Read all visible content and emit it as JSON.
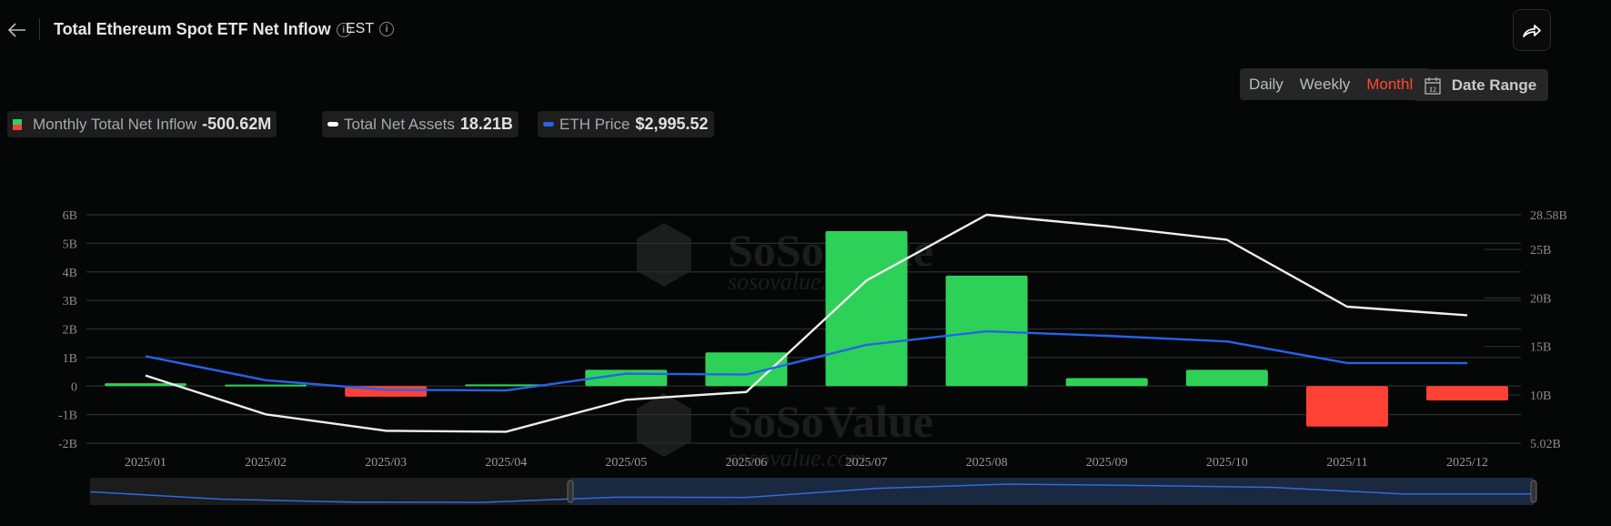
{
  "header": {
    "title": "Total Ethereum Spot ETF Net Inflow",
    "timezone": "EST",
    "back_icon": "arrow-left-icon",
    "share_icon": "share-icon"
  },
  "controls": {
    "periods": [
      "Daily",
      "Weekly",
      "Monthly"
    ],
    "active_period": "Monthly",
    "date_range_label": "Date Range",
    "date_range_icon_text": "12"
  },
  "legend": [
    {
      "label": "Monthly Total Net Inflow",
      "value": "-500.62M",
      "colors": [
        "#2ed158",
        "#ff4136"
      ]
    },
    {
      "label": "Total Net Assets",
      "value": "18.21B",
      "color": "#ffffff"
    },
    {
      "label": "ETH Price",
      "value": "$2,995.52",
      "color": "#2563eb"
    }
  ],
  "watermark": {
    "brand": "SoSoValue",
    "url": "sosovalue.com"
  },
  "chart_data": {
    "type": "bar+line",
    "categories": [
      "2025/01",
      "2025/02",
      "2025/03",
      "2025/04",
      "2025/05",
      "2025/06",
      "2025/07",
      "2025/08",
      "2025/09",
      "2025/10",
      "2025/11",
      "2025/12"
    ],
    "left_axis": {
      "ticks": [
        "6B",
        "5B",
        "4B",
        "3B",
        "2B",
        "1B",
        "0",
        "-1B",
        "-2B"
      ],
      "range": [
        -2,
        6
      ],
      "unit": "B USD"
    },
    "right_axis": {
      "ticks": [
        "28.58B",
        "25B",
        "20B",
        "15B",
        "10B",
        "5.02B"
      ],
      "range": [
        5.02,
        28.58
      ],
      "unit": "B USD"
    },
    "series": [
      {
        "name": "Monthly Total Net Inflow",
        "type": "bar",
        "axis": "left",
        "values": [
          0.1,
          0.05,
          -0.37,
          0.06,
          0.57,
          1.18,
          5.43,
          3.87,
          0.28,
          0.57,
          -1.42,
          -0.5
        ],
        "positive_color": "#2ed158",
        "negative_color": "#ff4136"
      },
      {
        "name": "Total Net Assets",
        "type": "line",
        "axis": "right",
        "values": [
          12.0,
          8.0,
          6.3,
          6.2,
          9.5,
          10.3,
          21.8,
          28.58,
          27.4,
          26.0,
          19.1,
          18.21
        ],
        "color": "#eeeeee"
      },
      {
        "name": "ETH Price",
        "type": "line",
        "axis": "hidden",
        "values": [
          3300,
          2240,
          1820,
          1790,
          2530,
          2490,
          3800,
          4400,
          4200,
          3950,
          3000,
          2995.52
        ],
        "color": "#2563eb"
      }
    ],
    "grid": true
  }
}
